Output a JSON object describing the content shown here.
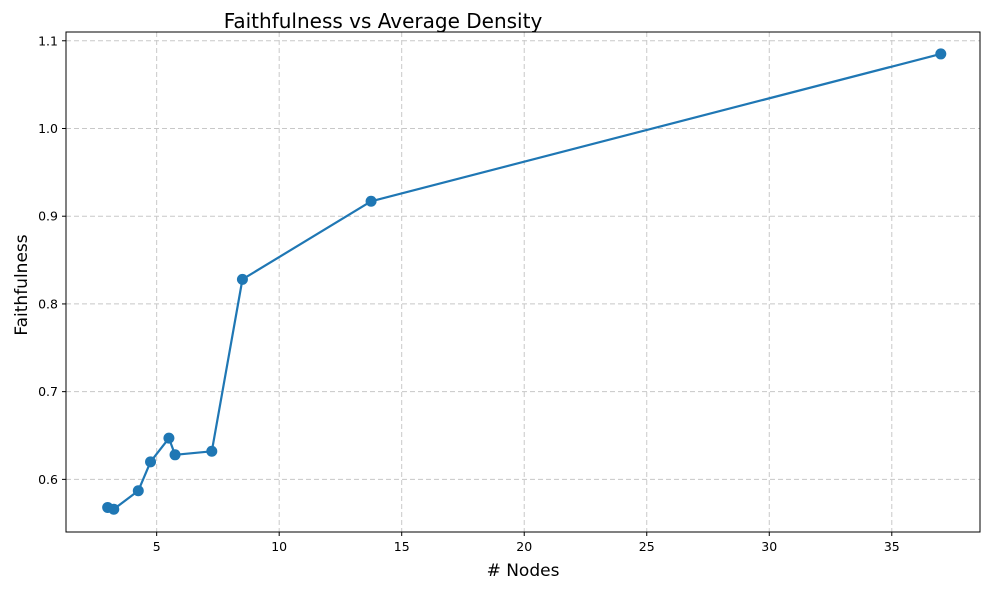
{
  "chart_data": {
    "type": "line",
    "title": "Faithfulness vs Average Density",
    "xlabel": "# Nodes",
    "ylabel": "Faithfulness",
    "xlim": [
      1.3,
      38.6
    ],
    "ylim": [
      0.54,
      1.11
    ],
    "xticks": [
      5,
      10,
      15,
      20,
      25,
      30,
      35
    ],
    "yticks": [
      0.6,
      0.7,
      0.8,
      0.9,
      1.0,
      1.1
    ],
    "grid": true,
    "marker": "circle",
    "series": [
      {
        "color": "#1f77b4",
        "x": [
          3.0,
          3.25,
          4.25,
          4.75,
          5.5,
          5.75,
          7.25,
          8.5,
          13.75,
          37.0
        ],
        "y": [
          0.568,
          0.566,
          0.587,
          0.62,
          0.647,
          0.628,
          0.632,
          0.828,
          0.917,
          1.085
        ]
      }
    ]
  }
}
